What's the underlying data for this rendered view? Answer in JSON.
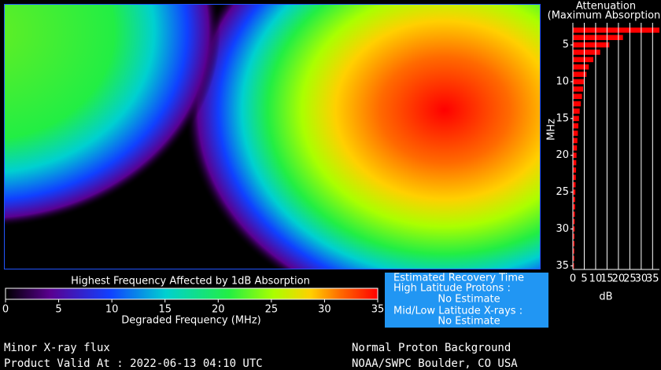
{
  "map": {
    "colorbar": {
      "title": "Highest Frequency Affected by 1dB Absorption",
      "lim": [
        0,
        35
      ],
      "ticks": [
        0,
        5,
        10,
        15,
        20,
        25,
        30,
        35
      ],
      "xlabel": "Degraded Frequency (MHz)"
    }
  },
  "recovery": {
    "title": "Estimated Recovery Time",
    "high_label": "High Latitude Protons :",
    "high_value": "No Estimate",
    "mid_label": "Mid/Low Latitude X-rays :",
    "mid_value": "No Estimate"
  },
  "footer": {
    "left": [
      "Minor X-ray flux",
      "Product Valid At : 2022-06-13 04:10 UTC"
    ],
    "right": [
      "Normal Proton Background",
      "NOAA/SWPC Boulder, CO USA"
    ]
  },
  "chart_data": {
    "type": "bar",
    "orientation": "horizontal",
    "title": "Attenuation",
    "subtitle": "(Maximum Absorption)",
    "ylabel": "MHz",
    "xlabel": "dB",
    "color": "#ff0000",
    "grid": true,
    "y": [
      3,
      4,
      5,
      6,
      7,
      8,
      9,
      10,
      11,
      12,
      13,
      14,
      15,
      16,
      17,
      18,
      19,
      20,
      21,
      22,
      23,
      24,
      25,
      26,
      27,
      28,
      29,
      30,
      31,
      32,
      33,
      34,
      35
    ],
    "values": [
      38,
      22,
      16,
      12,
      9,
      7,
      6,
      5,
      4.5,
      4,
      3.5,
      3,
      2.7,
      2.4,
      2.2,
      2,
      1.8,
      1.6,
      1.5,
      1.4,
      1.3,
      1.2,
      1.1,
      1,
      1,
      0.9,
      0.8,
      0.8,
      0.7,
      0.7,
      0.6,
      0.6,
      0.5
    ],
    "xlim": [
      0,
      38
    ],
    "xticks": [
      0,
      5,
      10,
      15,
      20,
      25,
      30,
      35
    ],
    "ylim": [
      2,
      35.5
    ],
    "yticks": [
      5,
      10,
      15,
      20,
      25,
      30,
      35
    ]
  }
}
